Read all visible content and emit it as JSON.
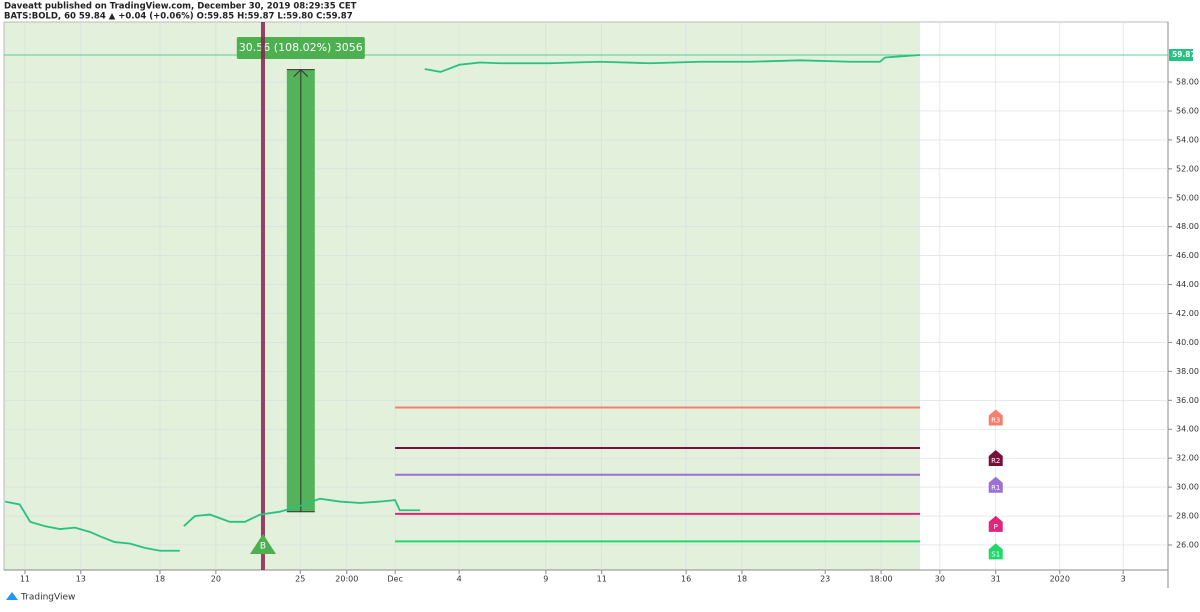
{
  "chart_data": {
    "type": "line",
    "title": "Daveatt published on TradingView.com, December 30, 2019 08:29:35 CET",
    "subtitle": "BATS:BOLD, 60 59.84 ▲ +0.04 (+0.06%) O:59.85 H:59.87 L:59.80 C:59.87",
    "watermark": "TradingView",
    "xlim": [
      0,
      200
    ],
    "xticks": [
      {
        "value": 3.6,
        "label": "11"
      },
      {
        "value": 13.2,
        "label": "13"
      },
      {
        "value": 26.8,
        "label": "18"
      },
      {
        "value": 36.4,
        "label": "20"
      },
      {
        "value": 50.9,
        "label": "25"
      },
      {
        "value": 58.9,
        "label": "20:00"
      },
      {
        "value": 67.2,
        "label": "Dec"
      },
      {
        "value": 78.2,
        "label": "4"
      },
      {
        "value": 93.1,
        "label": "9"
      },
      {
        "value": 102.7,
        "label": "11"
      },
      {
        "value": 117.2,
        "label": "16"
      },
      {
        "value": 126.8,
        "label": "18"
      },
      {
        "value": 141.1,
        "label": "23"
      },
      {
        "value": 150.7,
        "label": "18:00"
      },
      {
        "value": 160.8,
        "label": "30"
      },
      {
        "value": 170.4,
        "label": "31"
      },
      {
        "value": 181.4,
        "label": "2020"
      },
      {
        "value": 192.3,
        "label": "3"
      }
    ],
    "ylim": [
      24.27,
      62.15
    ],
    "yticks": [
      {
        "value": 26,
        "label": "26.00"
      },
      {
        "value": 28,
        "label": "28.00"
      },
      {
        "value": 30,
        "label": "30.00"
      },
      {
        "value": 32,
        "label": "32.00"
      },
      {
        "value": 34,
        "label": "34.00"
      },
      {
        "value": 36,
        "label": "36.00"
      },
      {
        "value": 38,
        "label": "38.00"
      },
      {
        "value": 40,
        "label": "40.00"
      },
      {
        "value": 42,
        "label": "42.00"
      },
      {
        "value": 44,
        "label": "44.00"
      },
      {
        "value": 46,
        "label": "46.00"
      },
      {
        "value": 48,
        "label": "48.00"
      },
      {
        "value": 50,
        "label": "50.00"
      },
      {
        "value": 52,
        "label": "52.00"
      },
      {
        "value": 54,
        "label": "54.00"
      },
      {
        "value": 56,
        "label": "56.00"
      },
      {
        "value": 58,
        "label": "58.00"
      }
    ],
    "grid": true,
    "last_price": 59.87,
    "series": [
      {
        "name": "BATS:BOLD",
        "color": "#26c281",
        "x": [
          0.2,
          2.7,
          4.5,
          7,
          9.6,
          12.2,
          14.8,
          16.5,
          19,
          21.6,
          24.2,
          26.8,
          30.2,
          30.5,
          30.9,
          32.8,
          35.4,
          38.8,
          41.4,
          44,
          47.4,
          50.9,
          54.3,
          57.7,
          61.2,
          64.6,
          67.2,
          68,
          71.5,
          72,
          72.3,
          75,
          78.3,
          81.8,
          85.2,
          93.8,
          102.4,
          111,
          119.6,
          128.2,
          136.8,
          145.4,
          150.5,
          151.4,
          157.4
        ],
        "values": [
          29.0,
          28.8,
          27.6,
          27.3,
          27.1,
          27.2,
          26.9,
          26.6,
          26.2,
          26.1,
          25.8,
          25.6,
          25.6,
          null,
          27.3,
          28.0,
          28.1,
          27.6,
          27.6,
          28.1,
          28.3,
          28.7,
          29.2,
          29.0,
          28.9,
          29.0,
          29.1,
          28.4,
          28.4,
          null,
          58.9,
          58.7,
          59.2,
          59.35,
          59.3,
          59.3,
          59.4,
          59.3,
          59.4,
          59.4,
          59.5,
          59.4,
          59.4,
          59.7,
          59.87
        ]
      }
    ],
    "levels": [
      {
        "name": "R3",
        "value": 35.5,
        "color": "#f57f6e"
      },
      {
        "name": "R2",
        "value": 32.7,
        "color": "#7b0f3b"
      },
      {
        "name": "R1",
        "value": 30.85,
        "color": "#9c6fd6"
      },
      {
        "name": "P",
        "value": 28.15,
        "color": "#e0267a"
      },
      {
        "name": "S1",
        "value": 26.25,
        "color": "#1fd96a"
      }
    ],
    "measure": {
      "label": "30.56 (108.02%) 3056",
      "from": 28.3,
      "to": 58.86
    },
    "signal": {
      "label": "B",
      "x": 44.5
    }
  }
}
